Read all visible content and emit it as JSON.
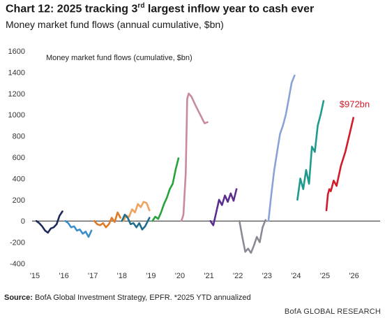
{
  "header": {
    "title_main": "Chart 12: 2025 tracking 3",
    "title_sup": "rd",
    "title_rest": " largest inflow year to cash ever",
    "subtitle": "Money market fund flows (annual cumulative, $bn)"
  },
  "chart_data": {
    "type": "line",
    "title": "Money market fund flows (cumulative, $bn)",
    "xlabel": "",
    "ylabel": "",
    "ylim": [
      -400,
      1600
    ],
    "yticks": [
      -400,
      -200,
      0,
      200,
      400,
      600,
      800,
      1000,
      1200,
      1400,
      1600
    ],
    "ytick_labels": [
      "-400",
      "-200",
      "0",
      "200",
      "400",
      "600",
      "800",
      "1000",
      "1200",
      "1400",
      "1600"
    ],
    "xlim": [
      2015,
      2026.9
    ],
    "xticks": [
      2015,
      2016,
      2017,
      2018,
      2019,
      2020,
      2021,
      2022,
      2023,
      2024,
      2025,
      2026
    ],
    "xtick_labels": [
      "'15",
      "'16",
      "'17",
      "'18",
      "'19",
      "'20",
      "'21",
      "'22",
      "'23",
      "'24",
      "'25",
      "'26"
    ],
    "grid": false,
    "zero_line": true,
    "annotation": {
      "text": "$972bn",
      "x": 2025.5,
      "y": 1070,
      "color": "#d01c2a"
    },
    "series": [
      {
        "year": "2015",
        "color": "#1f2a5c",
        "x": [
          2015.05,
          2015.15,
          2015.25,
          2015.35,
          2015.45,
          2015.55,
          2015.65,
          2015.75,
          2015.85,
          2015.95
        ],
        "y": [
          0,
          -20,
          -50,
          -90,
          -110,
          -70,
          -60,
          -30,
          50,
          90
        ]
      },
      {
        "year": "2016",
        "color": "#3b8fc9",
        "x": [
          2016.05,
          2016.15,
          2016.25,
          2016.35,
          2016.45,
          2016.55,
          2016.65,
          2016.75,
          2016.85,
          2016.95
        ],
        "y": [
          0,
          -20,
          -60,
          -50,
          -90,
          -80,
          -120,
          -100,
          -150,
          -90
        ]
      },
      {
        "year": "2017",
        "color": "#e07a24",
        "x": [
          2017.05,
          2017.15,
          2017.25,
          2017.35,
          2017.45,
          2017.55,
          2017.65,
          2017.75,
          2017.85,
          2017.95
        ],
        "y": [
          0,
          -30,
          -40,
          -20,
          -60,
          -30,
          30,
          -10,
          80,
          30
        ]
      },
      {
        "year": "2018",
        "color": "#f0a35e",
        "x": [
          2018.05,
          2018.15,
          2018.25,
          2018.35,
          2018.45,
          2018.55,
          2018.65,
          2018.75,
          2018.85,
          2018.95
        ],
        "y": [
          0,
          50,
          40,
          110,
          80,
          160,
          130,
          180,
          170,
          100
        ]
      },
      {
        "year": "2018b",
        "color": "#1f6f8b",
        "x": [
          2018.0,
          2018.1,
          2018.2,
          2018.3,
          2018.4,
          2018.5,
          2018.6,
          2018.7,
          2018.8,
          2018.95
        ],
        "y": [
          0,
          60,
          30,
          -30,
          -20,
          -60,
          -20,
          -80,
          -50,
          30
        ]
      },
      {
        "year": "2019",
        "color": "#27a33a",
        "x": [
          2019.05,
          2019.15,
          2019.25,
          2019.35,
          2019.45,
          2019.55,
          2019.65,
          2019.75,
          2019.85,
          2019.95
        ],
        "y": [
          0,
          40,
          20,
          80,
          160,
          220,
          300,
          350,
          480,
          590
        ]
      },
      {
        "year": "2020",
        "color": "#c98a9e",
        "x": [
          2020.05,
          2020.12,
          2020.2,
          2020.25,
          2020.3,
          2020.4,
          2020.55,
          2020.7,
          2020.85,
          2020.95
        ],
        "y": [
          0,
          60,
          450,
          1150,
          1200,
          1170,
          1080,
          1000,
          920,
          930
        ]
      },
      {
        "year": "2021",
        "color": "#5b2d8e",
        "x": [
          2021.05,
          2021.15,
          2021.25,
          2021.35,
          2021.45,
          2021.55,
          2021.65,
          2021.75,
          2021.85,
          2021.95
        ],
        "y": [
          0,
          -40,
          80,
          200,
          150,
          240,
          180,
          260,
          190,
          300
        ]
      },
      {
        "year": "2022",
        "color": "#8a8a95",
        "x": [
          2022.05,
          2022.15,
          2022.25,
          2022.35,
          2022.45,
          2022.55,
          2022.65,
          2022.75,
          2022.85,
          2022.95
        ],
        "y": [
          0,
          -150,
          -290,
          -260,
          -300,
          -230,
          -150,
          -200,
          -60,
          10
        ]
      },
      {
        "year": "2023",
        "color": "#8aa3d6",
        "x": [
          2023.05,
          2023.15,
          2023.25,
          2023.35,
          2023.45,
          2023.55,
          2023.65,
          2023.75,
          2023.85,
          2023.95
        ],
        "y": [
          0,
          250,
          480,
          650,
          820,
          900,
          1000,
          1150,
          1300,
          1370
        ]
      },
      {
        "year": "2024",
        "color": "#1f9b8e",
        "x": [
          2024.05,
          2024.15,
          2024.25,
          2024.35,
          2024.45,
          2024.55,
          2024.65,
          2024.75,
          2024.85,
          2024.95
        ],
        "y": [
          200,
          400,
          300,
          480,
          350,
          700,
          650,
          900,
          1000,
          1130
        ]
      },
      {
        "year": "2025",
        "color": "#d01c2a",
        "x": [
          2025.05,
          2025.1,
          2025.15,
          2025.2,
          2025.3,
          2025.4,
          2025.55,
          2025.7,
          2025.85,
          2025.98
        ],
        "y": [
          100,
          250,
          300,
          280,
          380,
          330,
          520,
          650,
          820,
          972
        ]
      }
    ]
  },
  "footer": {
    "source_label": "Source:",
    "source_text": " BofA Global Investment Strategy, EPFR. *2025 YTD annualized",
    "brand": "BofA GLOBAL RESEARCH"
  }
}
